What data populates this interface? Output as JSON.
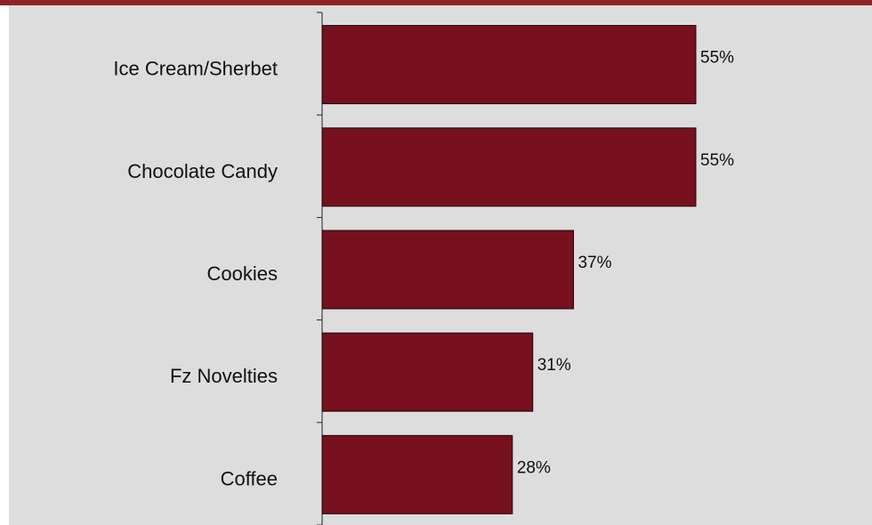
{
  "colors": {
    "top_band": "#8e2227",
    "plot_background": "#dddddd",
    "bar_fill": "#76101d",
    "bar_stroke": "#1a0a0c",
    "axis": "#222222"
  },
  "chart_data": {
    "type": "bar",
    "orientation": "horizontal",
    "categories": [
      "Ice Cream/Sherbet",
      "Chocolate Candy",
      "Cookies",
      "Fz Novelties",
      "Coffee"
    ],
    "values": [
      55,
      55,
      37,
      31,
      28
    ],
    "value_labels": [
      "55%",
      "55%",
      "37%",
      "31%",
      "28%"
    ],
    "title": "",
    "xlabel": "",
    "ylabel": "",
    "xlim": [
      0,
      80
    ],
    "grid": false,
    "legend": "none"
  }
}
